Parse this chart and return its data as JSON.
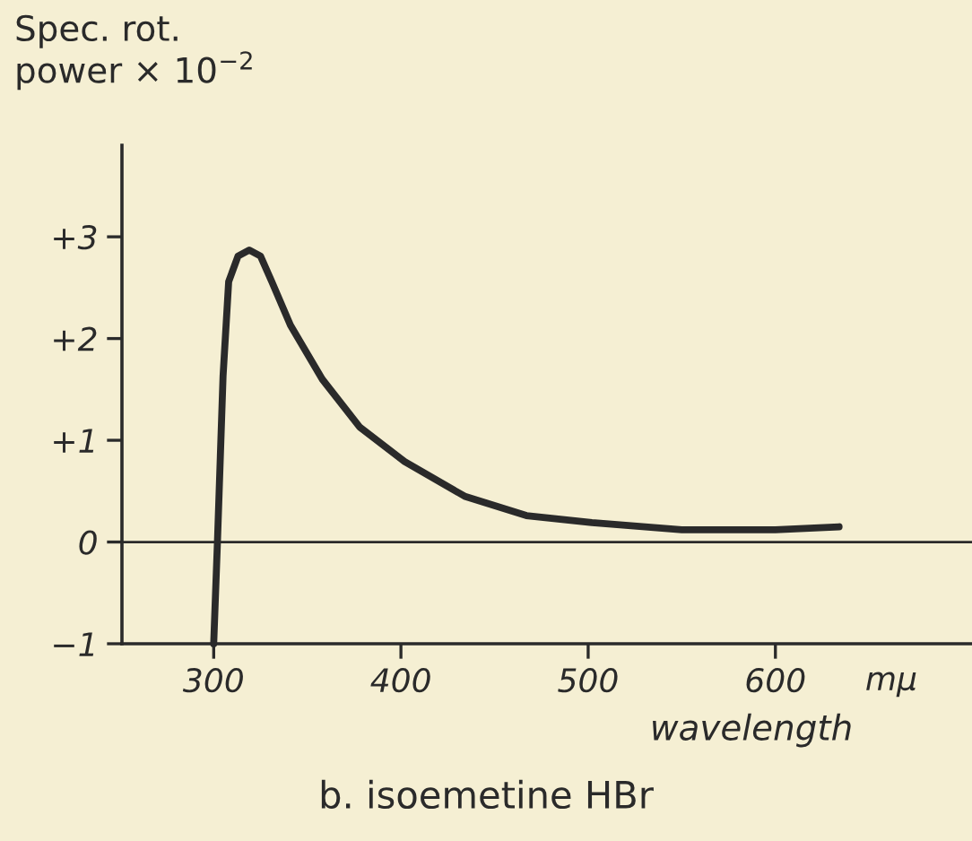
{
  "chart_data": {
    "type": "line",
    "title": "b. isoemetine HBr",
    "xlabel": "wavelength",
    "ylabel": "Spec. rot.\npower × 10$^{−2}$",
    "annotations": [
      "mμ"
    ],
    "x": [
      300,
      302,
      305,
      308,
      313,
      319,
      325,
      331,
      341,
      358,
      378,
      402,
      434,
      467,
      502,
      550,
      600,
      634
    ],
    "series": [
      {
        "color": "#2a2a2a",
        "values": [
          -1.0,
          0,
          1.63,
          2.56,
          2.81,
          2.87,
          2.81,
          2.56,
          2.13,
          1.6,
          1.13,
          0.79,
          0.45,
          0.26,
          0.19,
          0.12,
          0.12,
          0.15
        ]
      }
    ],
    "xlim": [
      251,
      705
    ],
    "ylim": [
      -1,
      3.9
    ],
    "xticks": [
      300,
      400,
      500,
      600
    ],
    "yticks": [
      {
        "value": -1,
        "label": "−1"
      },
      0,
      {
        "value": 1,
        "label": "+1"
      },
      {
        "value": 2,
        "label": "+2"
      },
      {
        "value": 3,
        "label": "+3"
      }
    ],
    "ref_lines": [
      {
        "axis": "y",
        "value": 0,
        "color": "#2a2a2a"
      }
    ],
    "grid": false,
    "legend": false,
    "marker": "none",
    "line_style": "solid"
  }
}
